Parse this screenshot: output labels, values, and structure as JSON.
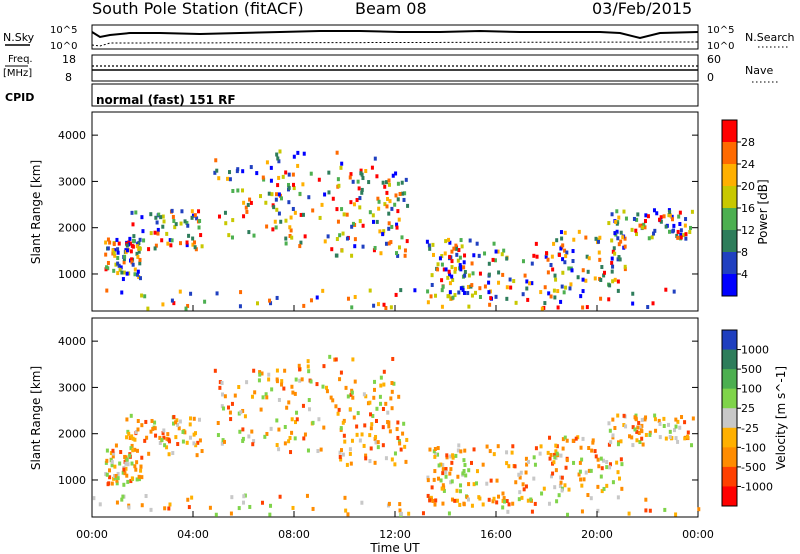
{
  "header": {
    "station": "South Pole Station (fitACF)",
    "beam": "Beam 08",
    "date": "03/Feb/2015"
  },
  "panels": {
    "nsky": {
      "label": "N.Sky",
      "ticks": [
        "10^5",
        "10^0"
      ]
    },
    "nsearch": {
      "label": "N.Search",
      "ticks": [
        "10^5",
        "10^0"
      ]
    },
    "freq": {
      "label_line1": "Freq.",
      "label_line2": "[MHz]",
      "ticks": [
        "18",
        "8"
      ]
    },
    "nave": {
      "label": "Nave",
      "ticks": [
        "60",
        "0"
      ]
    },
    "cpid": {
      "label": "CPID",
      "value": "normal (fast) 151 RF"
    }
  },
  "chart_data": [
    {
      "type": "heatmap",
      "title": "Power",
      "xlabel": "",
      "ylabel": "Slant Range [km]",
      "xticks": [
        "00:00",
        "04:00",
        "08:00",
        "12:00",
        "16:00",
        "20:00",
        "00:00"
      ],
      "yticks": [
        "1000",
        "2000",
        "3000",
        "4000"
      ],
      "ylim": [
        200,
        4500
      ],
      "colorbar": {
        "label": "Power [dB]",
        "ticks": [
          "28",
          "24",
          "20",
          "16",
          "12",
          "8",
          "4"
        ],
        "colors": [
          "#ff0000",
          "#ff6a00",
          "#ffb000",
          "#c8c800",
          "#4caf50",
          "#2e7d5b",
          "#2040c0",
          "#0000ff"
        ]
      }
    },
    {
      "type": "heatmap",
      "title": "Velocity",
      "xlabel": "Time UT",
      "ylabel": "Slant Range [km]",
      "xticks": [
        "00:00",
        "04:00",
        "08:00",
        "12:00",
        "16:00",
        "20:00",
        "00:00"
      ],
      "yticks": [
        "1000",
        "2000",
        "3000",
        "4000"
      ],
      "ylim": [
        200,
        4500
      ],
      "colorbar": {
        "label": "Velocity [m s^-1]",
        "ticks": [
          "1000",
          "500",
          "100",
          "25",
          "-25",
          "-100",
          "-500",
          "-1000"
        ],
        "colors": [
          "#1f3fbf",
          "#2e7d5b",
          "#4caf50",
          "#7fd44a",
          "#c8c8c8",
          "#ffb000",
          "#ff8c00",
          "#ff4000",
          "#ff0000"
        ]
      }
    }
  ]
}
